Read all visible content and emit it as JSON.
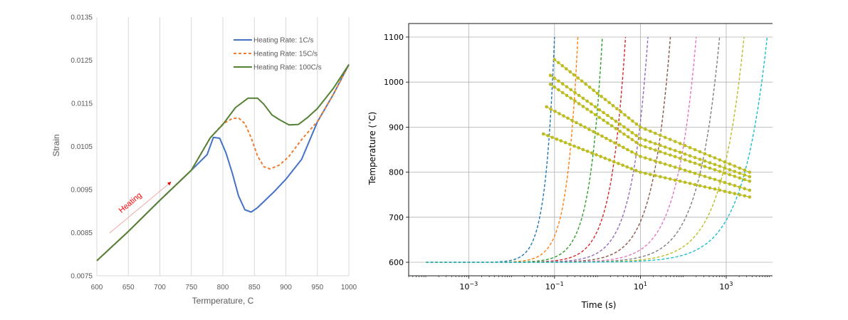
{
  "chart_data": [
    {
      "type": "line",
      "xlabel": "Termperature, C",
      "ylabel": "Strain",
      "xlim": [
        600,
        1000
      ],
      "ylim": [
        0.0075,
        0.0135
      ],
      "xticks": [
        600,
        650,
        700,
        750,
        800,
        850,
        900,
        950,
        1000
      ],
      "yticks": [
        "0.0075",
        "0.0085",
        "0.0095",
        "0.0105",
        "0.0115",
        "0.0125",
        "0.0135"
      ],
      "grid": "vertical",
      "legend_position": "top-right",
      "annotation": {
        "text": "Heating",
        "color": "#ff0000",
        "arrow_from": [
          620,
          0.00849
        ],
        "arrow_to": [
          718,
          0.00968
        ]
      },
      "series": [
        {
          "name": "Heating Rate: 1C/s",
          "color": "#4472c4",
          "style": "solid",
          "x": [
            600,
            650,
            700,
            750,
            775,
            785,
            795,
            805,
            815,
            825,
            835,
            845,
            855,
            865,
            880,
            900,
            925,
            950,
            975,
            1000
          ],
          "y": [
            0.00785,
            0.00853,
            0.00925,
            0.00995,
            0.01031,
            0.01071,
            0.01069,
            0.01035,
            0.00988,
            0.00935,
            0.00903,
            0.00898,
            0.00908,
            0.00922,
            0.00943,
            0.00974,
            0.0102,
            0.01107,
            0.0117,
            0.0124
          ]
        },
        {
          "name": "Heating Rate: 15C/s",
          "color": "#ed7d31",
          "style": "dashed",
          "x": [
            600,
            650,
            700,
            750,
            780,
            800,
            815,
            825,
            835,
            845,
            855,
            865,
            875,
            890,
            905,
            925,
            950,
            975,
            1000
          ],
          "y": [
            0.00785,
            0.00853,
            0.00925,
            0.00995,
            0.0107,
            0.01102,
            0.01115,
            0.01116,
            0.01103,
            0.0107,
            0.01028,
            0.01003,
            0.00998,
            0.01007,
            0.01027,
            0.01066,
            0.01108,
            0.0117,
            0.0124
          ]
        },
        {
          "name": "Heating Rate: 100C/s",
          "color": "#548235",
          "style": "solid",
          "x": [
            600,
            650,
            700,
            750,
            780,
            800,
            820,
            840,
            855,
            865,
            878,
            890,
            905,
            920,
            935,
            950,
            975,
            1000
          ],
          "y": [
            0.00785,
            0.00853,
            0.00925,
            0.00995,
            0.0107,
            0.01101,
            0.0114,
            0.01162,
            0.01162,
            0.01148,
            0.01123,
            0.01112,
            0.011,
            0.01101,
            0.01118,
            0.01138,
            0.01184,
            0.0124
          ]
        }
      ]
    },
    {
      "type": "line",
      "xlabel": "Time (s)",
      "ylabel": "Temperature ($^\\circ$C)",
      "xscale": "log",
      "xlim": [
        4e-05,
        30000
      ],
      "ylim": [
        570,
        1130
      ],
      "xticks": [
        "10^-3",
        "10^-1",
        "10^1",
        "10^3"
      ],
      "yticks": [
        600,
        700,
        800,
        900,
        1000,
        1100
      ],
      "grid": true,
      "legend_position": "none",
      "heating_curves": {
        "style": "dashed",
        "y_start": 600,
        "y_end": 1100,
        "x_start": 0.0001,
        "end_times": [
          0.1,
          0.35,
          1.3,
          4.5,
          15,
          50,
          200,
          700,
          2600,
          9000
        ],
        "colors": [
          "#1f77b4",
          "#ff7f0e",
          "#2ca02c",
          "#d62728",
          "#9467bd",
          "#8c564b",
          "#e377c2",
          "#7f7f7f",
          "#bcbd22",
          "#17becf"
        ]
      },
      "dotted_curves": {
        "color": "#bcbd22",
        "series": [
          {
            "x": [
              0.1,
              10,
              3500
            ],
            "y": [
              1050,
              900,
              800
            ]
          },
          {
            "x": [
              0.08,
              10,
              3500
            ],
            "y": [
              1015,
              875,
              790
            ]
          },
          {
            "x": [
              0.08,
              10,
              3500
            ],
            "y": [
              995,
              860,
              780
            ]
          },
          {
            "x": [
              0.065,
              10,
              3500
            ],
            "y": [
              945,
              835,
              760
            ]
          },
          {
            "x": [
              0.055,
              10,
              3500
            ],
            "y": [
              885,
              800,
              745
            ]
          }
        ]
      }
    }
  ]
}
